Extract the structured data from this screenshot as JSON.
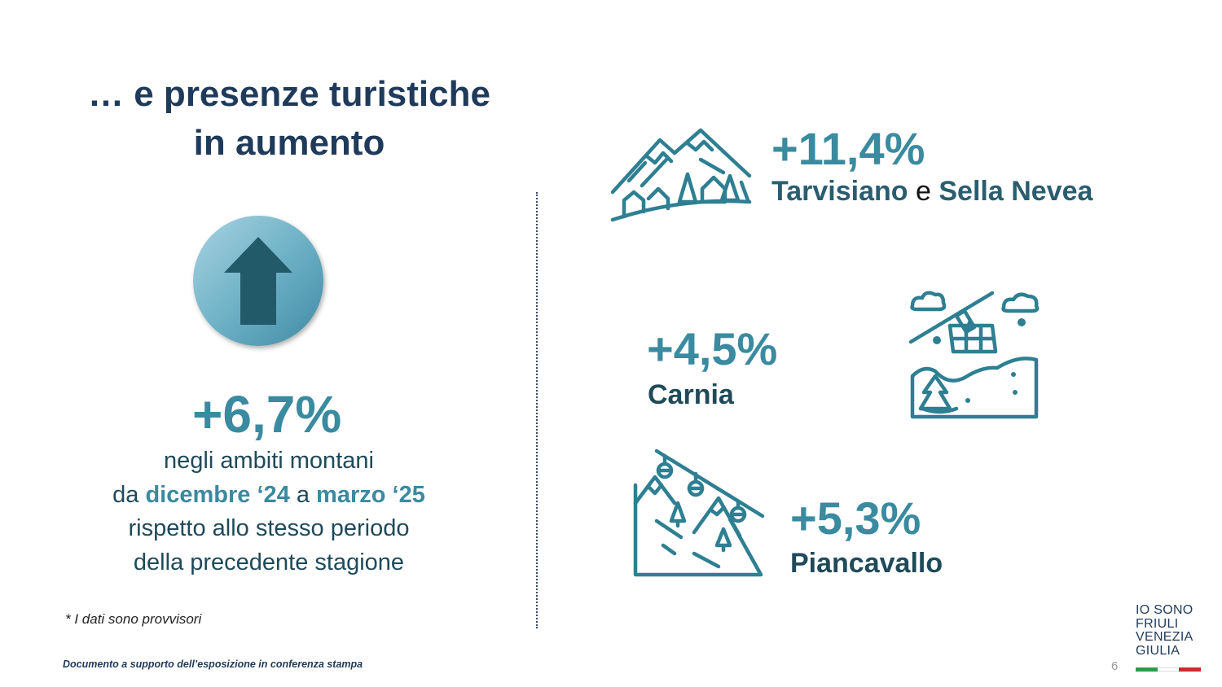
{
  "title": {
    "line1": "… e presenze turistiche",
    "line2": "in aumento"
  },
  "main": {
    "percentage": "+6,7%",
    "line1": "negli ambiti montani",
    "line2_prefix": "da ",
    "line2_start": "dicembre ‘24",
    "line2_mid": " a ",
    "line2_end": "marzo ‘25",
    "line3": "rispetto allo stesso periodo",
    "line4": "della precedente stagione"
  },
  "footnote": "* I dati sono provvisori",
  "footer": "Documento a supporto dell’esposizione in conferenza stampa",
  "regions": [
    {
      "percentage": "+11,4%",
      "name_a": "Tarvisiano",
      "connector": " e ",
      "name_b": "Sella Nevea",
      "icon": "mountain-village-icon"
    },
    {
      "percentage": "+4,5%",
      "name": "Carnia",
      "icon": "cable-car-icon"
    },
    {
      "percentage": "+5,3%",
      "name": "Piancavallo",
      "icon": "ski-slope-icon"
    }
  ],
  "logo": {
    "line1": "IO SONO",
    "line2": "FRIULI",
    "line3": "VENEZIA",
    "line4": "GIULIA"
  },
  "page_number": "6",
  "colors": {
    "accent": "#3a8aa0",
    "dark": "#1f3a5a",
    "icon": "#2e7f92"
  }
}
